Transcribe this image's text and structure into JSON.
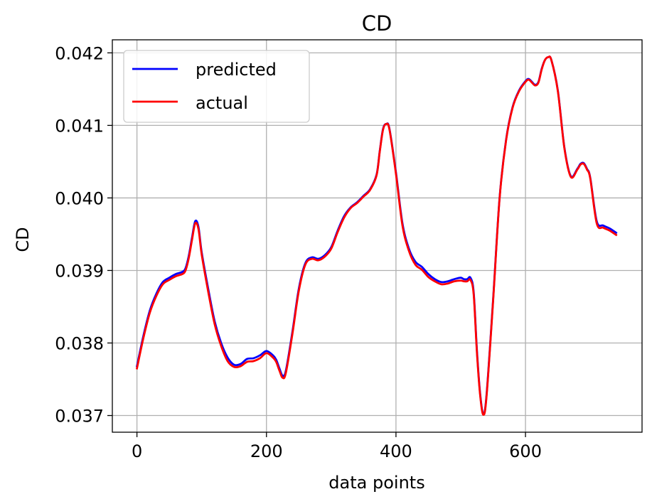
{
  "chart_data": {
    "type": "line",
    "title": "CD",
    "xlabel": "data points",
    "ylabel": "CD",
    "xlim": [
      -38,
      780
    ],
    "ylim": [
      0.03677,
      0.04218
    ],
    "xticks": [
      0,
      200,
      400,
      600
    ],
    "xtick_labels": [
      "0",
      "200",
      "400",
      "600"
    ],
    "yticks": [
      0.037,
      0.038,
      0.039,
      0.04,
      0.041,
      0.042
    ],
    "ytick_labels": [
      "0.037",
      "0.038",
      "0.039",
      "0.040",
      "0.041",
      "0.042"
    ],
    "grid": true,
    "legend_position": "upper left",
    "series": [
      {
        "name": "predicted",
        "color": "#0000ff",
        "x": [
          0,
          10,
          20,
          30,
          40,
          50,
          60,
          70,
          75,
          80,
          85,
          90,
          95,
          100,
          110,
          120,
          130,
          140,
          150,
          160,
          170,
          180,
          190,
          200,
          210,
          215,
          220,
          225,
          230,
          240,
          250,
          260,
          270,
          280,
          290,
          300,
          310,
          320,
          330,
          340,
          350,
          360,
          370,
          375,
          380,
          385,
          390,
          400,
          410,
          420,
          430,
          440,
          450,
          460,
          470,
          480,
          490,
          500,
          505,
          510,
          515,
          520,
          525,
          530,
          535,
          540,
          550,
          560,
          570,
          580,
          590,
          600,
          605,
          610,
          615,
          620,
          625,
          630,
          635,
          640,
          650,
          660,
          670,
          680,
          685,
          690,
          695,
          700,
          710,
          720,
          730,
          740
        ],
        "y": [
          0.03768,
          0.0381,
          0.03845,
          0.03868,
          0.03884,
          0.0389,
          0.03895,
          0.03898,
          0.03903,
          0.0392,
          0.03945,
          0.03968,
          0.0396,
          0.03925,
          0.03875,
          0.0383,
          0.038,
          0.0378,
          0.0377,
          0.03771,
          0.03778,
          0.03779,
          0.03783,
          0.03789,
          0.03783,
          0.03777,
          0.03765,
          0.03755,
          0.03762,
          0.03815,
          0.03875,
          0.0391,
          0.03918,
          0.03916,
          0.03921,
          0.03932,
          0.03955,
          0.03975,
          0.03987,
          0.03994,
          0.04003,
          0.04012,
          0.04032,
          0.04065,
          0.04095,
          0.04102,
          0.04095,
          0.04035,
          0.03965,
          0.0393,
          0.03912,
          0.03905,
          0.03895,
          0.03888,
          0.03884,
          0.03885,
          0.03888,
          0.0389,
          0.03888,
          0.03888,
          0.0389,
          0.0387,
          0.0379,
          0.0373,
          0.03702,
          0.0373,
          0.0386,
          0.04,
          0.0408,
          0.04125,
          0.04148,
          0.04161,
          0.04164,
          0.0416,
          0.04156,
          0.0416,
          0.04178,
          0.0419,
          0.04194,
          0.0419,
          0.04148,
          0.0407,
          0.0403,
          0.0404,
          0.04047,
          0.04048,
          0.0404,
          0.04028,
          0.03968,
          0.03962,
          0.03958,
          0.03952
        ]
      },
      {
        "name": "actual",
        "color": "#ff0000",
        "x": [
          0,
          10,
          20,
          30,
          40,
          50,
          60,
          70,
          75,
          80,
          85,
          90,
          95,
          100,
          110,
          120,
          130,
          140,
          150,
          160,
          170,
          180,
          190,
          200,
          210,
          215,
          220,
          225,
          230,
          240,
          250,
          260,
          270,
          280,
          290,
          300,
          310,
          320,
          330,
          340,
          350,
          360,
          370,
          375,
          380,
          385,
          390,
          400,
          410,
          420,
          430,
          440,
          450,
          460,
          470,
          480,
          490,
          500,
          505,
          510,
          515,
          520,
          525,
          530,
          535,
          540,
          550,
          560,
          570,
          580,
          590,
          600,
          605,
          610,
          615,
          620,
          625,
          630,
          635,
          640,
          650,
          660,
          670,
          680,
          685,
          690,
          695,
          700,
          710,
          720,
          730,
          740
        ],
        "y": [
          0.03765,
          0.03807,
          0.03842,
          0.03865,
          0.03881,
          0.03887,
          0.03892,
          0.03895,
          0.039,
          0.03917,
          0.03942,
          0.03965,
          0.03957,
          0.03922,
          0.03871,
          0.03826,
          0.03796,
          0.03775,
          0.03767,
          0.03768,
          0.03774,
          0.03775,
          0.03779,
          0.03786,
          0.0378,
          0.03774,
          0.03762,
          0.03752,
          0.03759,
          0.03812,
          0.03872,
          0.03908,
          0.03916,
          0.03914,
          0.03919,
          0.0393,
          0.03953,
          0.03973,
          0.03986,
          0.03993,
          0.04002,
          0.04011,
          0.04031,
          0.04064,
          0.04094,
          0.04102,
          0.04094,
          0.04033,
          0.03962,
          0.03927,
          0.03908,
          0.03901,
          0.03891,
          0.03885,
          0.03881,
          0.03882,
          0.03885,
          0.03886,
          0.03885,
          0.03885,
          0.03887,
          0.03867,
          0.03787,
          0.03728,
          0.03701,
          0.03728,
          0.03858,
          0.03999,
          0.04079,
          0.04124,
          0.04147,
          0.0416,
          0.04163,
          0.04159,
          0.04155,
          0.04159,
          0.04177,
          0.0419,
          0.04194,
          0.0419,
          0.04147,
          0.04069,
          0.04029,
          0.04039,
          0.04046,
          0.04047,
          0.04039,
          0.04027,
          0.03965,
          0.03959,
          0.03955,
          0.03949
        ]
      }
    ]
  }
}
